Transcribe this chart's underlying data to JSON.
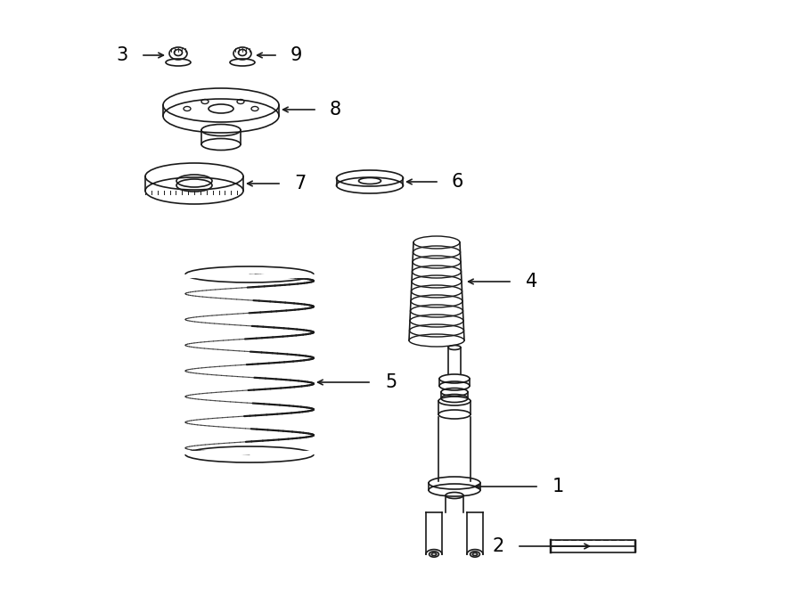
{
  "bg_color": "#ffffff",
  "line_color": "#1a1a1a",
  "text_color": "#000000",
  "lw": 1.2,
  "fig_width": 9.0,
  "fig_height": 6.61,
  "dpi": 100,
  "num_fs": 15
}
